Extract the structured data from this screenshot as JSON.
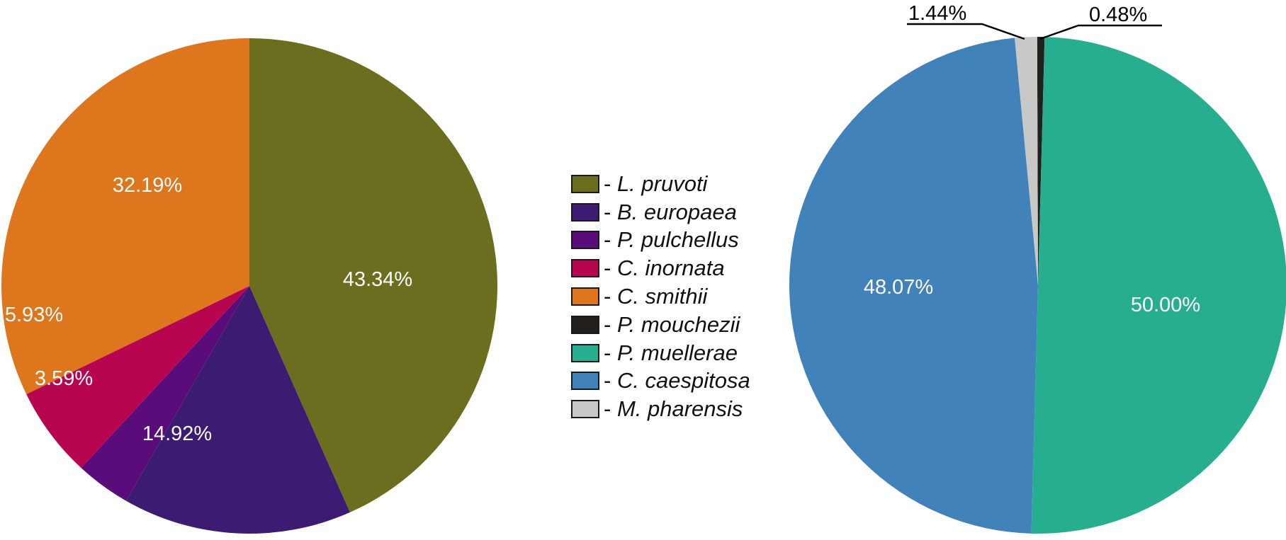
{
  "chart_data": [
    {
      "type": "pie",
      "title": "",
      "slices": [
        {
          "label": "L. pruvoti",
          "value": 43.34,
          "color": "#6b6e1f",
          "display": "43.34%"
        },
        {
          "label": "B. europaea",
          "value": 14.92,
          "color": "#3c1c72",
          "display": "14.92%"
        },
        {
          "label": "P. pulchellus",
          "value": 3.59,
          "color": "#5a0d7a",
          "display": "3.59%"
        },
        {
          "label": "C. inornata",
          "value": 5.93,
          "color": "#b8054f",
          "display": "5.93%"
        },
        {
          "label": "C. smithii",
          "value": 32.19,
          "color": "#dd761d",
          "display": "32.19%"
        }
      ]
    },
    {
      "type": "pie",
      "title": "",
      "slices": [
        {
          "label": "P. mouchezii",
          "value": 0.48,
          "color": "#231f1c",
          "display": "0.48%"
        },
        {
          "label": "P. muellerae",
          "value": 50.0,
          "color": "#27ae8f",
          "display": "50.00%"
        },
        {
          "label": "C. caespitosa",
          "value": 48.07,
          "color": "#4282ba",
          "display": "48.07%"
        },
        {
          "label": "M. pharensis",
          "value": 1.44,
          "color": "#c8c8c6",
          "display": "1.44%"
        }
      ]
    }
  ],
  "legend": {
    "position": "center",
    "items": [
      {
        "dash": "- ",
        "label": "L. pruvoti",
        "color": "#6b6e1f"
      },
      {
        "dash": "- ",
        "label": "B. europaea",
        "color": "#3c1c72"
      },
      {
        "dash": "- ",
        "label": "P. pulchellus",
        "color": "#5a0d7a"
      },
      {
        "dash": "- ",
        "label": "C. inornata",
        "color": "#b8054f"
      },
      {
        "dash": "- ",
        "label": "C. smithii",
        "color": "#dd761d"
      },
      {
        "dash": "- ",
        "label": "P. mouchezii",
        "color": "#231f1c"
      },
      {
        "dash": "- ",
        "label": "P. muellerae",
        "color": "#27ae8f"
      },
      {
        "dash": "- ",
        "label": "C. caespitosa",
        "color": "#4282ba"
      },
      {
        "dash": "- ",
        "label": "M. pharensis",
        "color": "#c8c8c6"
      }
    ]
  },
  "labels": {
    "left": {
      "pruvoti": "43.34%",
      "europaea": "14.92%",
      "pulchellus": "3.59%",
      "inornata": "5.93%",
      "smithii": "32.19%"
    },
    "right": {
      "mouchezii": "0.48%",
      "muellerae": "50.00%",
      "caespitosa": "48.07%",
      "pharensis": "1.44%"
    }
  }
}
